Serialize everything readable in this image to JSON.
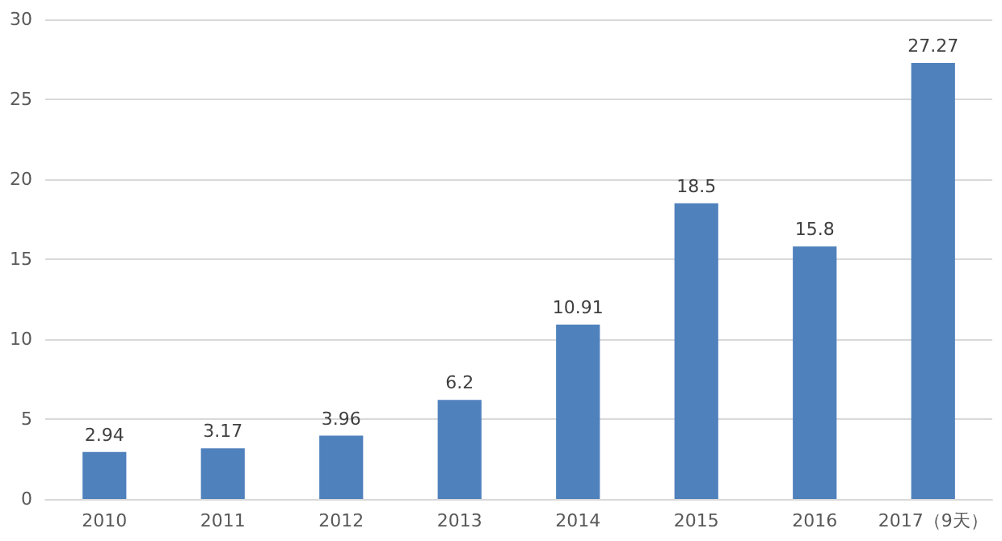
{
  "chart_data": {
    "type": "bar",
    "categories": [
      "2010",
      "2011",
      "2012",
      "2013",
      "2014",
      "2015",
      "2016",
      "2017（9天）"
    ],
    "values": [
      2.94,
      3.17,
      3.96,
      6.2,
      10.91,
      18.5,
      15.8,
      27.27
    ],
    "color": "#4f81bd",
    "ylim": [
      0,
      30
    ],
    "yticks": [
      0,
      5,
      10,
      15,
      20,
      25,
      30
    ],
    "grid": "y",
    "data_labels": true
  }
}
